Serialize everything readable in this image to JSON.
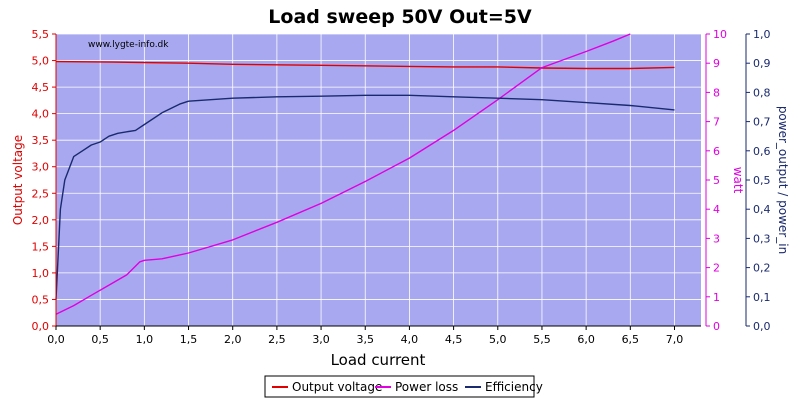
{
  "chart_data": {
    "type": "line",
    "title": "Load sweep 50V Out=5V",
    "watermark": "www.lygte-info.dk",
    "xlabel": "Load current",
    "xlim": [
      0,
      7.3
    ],
    "x_ticks": [
      "0,0",
      "0,5",
      "1,0",
      "1,5",
      "2,0",
      "2,5",
      "3,0",
      "3,5",
      "4,0",
      "4,5",
      "5,0",
      "5,5",
      "6,0",
      "6,5",
      "7,0"
    ],
    "y_left": {
      "label": "Output voltage",
      "color": "#e00000",
      "lim": [
        0,
        5.5
      ],
      "ticks": [
        "0,0",
        "0,5",
        "1,0",
        "1,5",
        "2,0",
        "2,5",
        "3,0",
        "3,5",
        "4,0",
        "4,5",
        "5,0",
        "5,5"
      ]
    },
    "y_right1": {
      "label": "watt",
      "color": "#e000e0",
      "lim": [
        0,
        10
      ],
      "ticks": [
        "0",
        "1",
        "2",
        "3",
        "4",
        "5",
        "6",
        "7",
        "8",
        "9",
        "10"
      ]
    },
    "y_right2": {
      "label": "power_output / power_in",
      "color": "#1a2a6e",
      "lim": [
        0,
        1
      ],
      "ticks": [
        "0,0",
        "0,1",
        "0,2",
        "0,3",
        "0,4",
        "0,5",
        "0,6",
        "0,7",
        "0,8",
        "0,9",
        "1,0"
      ]
    },
    "grid": true,
    "plot_background": "#a8a8f0",
    "legend_position": "bottom-center",
    "series": [
      {
        "name": "Output voltage",
        "axis": "left",
        "color": "#e00000",
        "x": [
          0.0,
          0.65,
          1.5,
          2.0,
          3.0,
          4.0,
          4.5,
          5.0,
          5.5,
          6.0,
          6.5,
          7.0
        ],
        "y": [
          4.98,
          4.97,
          4.95,
          4.93,
          4.91,
          4.89,
          4.88,
          4.88,
          4.86,
          4.85,
          4.85,
          4.87
        ]
      },
      {
        "name": "Power loss",
        "axis": "right1",
        "color": "#e000e0",
        "x": [
          0.0,
          0.2,
          0.4,
          0.6,
          0.8,
          0.95,
          1.0,
          1.2,
          1.5,
          2.0,
          2.5,
          3.0,
          3.5,
          4.0,
          4.5,
          5.0,
          5.5,
          6.0,
          6.3,
          6.5
        ],
        "y": [
          0.4,
          0.7,
          1.05,
          1.4,
          1.75,
          2.2,
          2.25,
          2.3,
          2.5,
          2.95,
          3.55,
          4.2,
          4.95,
          5.75,
          6.7,
          7.75,
          8.85,
          9.4,
          9.75,
          10.0
        ]
      },
      {
        "name": "Efficiency",
        "axis": "right2",
        "color": "#1a2a6e",
        "x": [
          0.0,
          0.05,
          0.1,
          0.2,
          0.3,
          0.4,
          0.5,
          0.6,
          0.7,
          0.8,
          0.9,
          1.0,
          1.2,
          1.4,
          1.5,
          2.0,
          2.5,
          3.0,
          3.5,
          4.0,
          4.5,
          5.0,
          5.5,
          6.0,
          6.5,
          7.0
        ],
        "y": [
          0.09,
          0.4,
          0.5,
          0.58,
          0.6,
          0.62,
          0.63,
          0.65,
          0.66,
          0.665,
          0.67,
          0.69,
          0.73,
          0.76,
          0.77,
          0.78,
          0.785,
          0.787,
          0.79,
          0.79,
          0.785,
          0.78,
          0.775,
          0.765,
          0.755,
          0.74
        ]
      }
    ]
  }
}
